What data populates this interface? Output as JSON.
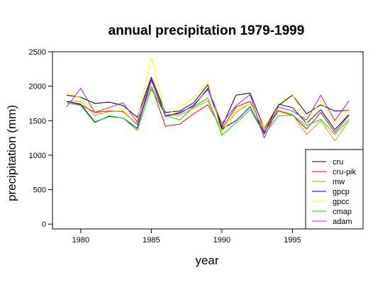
{
  "chart_data": {
    "type": "line",
    "title": "annual precipitation 1979-1999",
    "xlabel": "year",
    "ylabel": "precipitation (mm)",
    "xlim": [
      1978,
      2000
    ],
    "ylim": [
      -70,
      2500
    ],
    "x_ticks": [
      1980,
      1985,
      1990,
      1995
    ],
    "y_ticks": [
      0,
      500,
      1000,
      1500,
      2000,
      2500
    ],
    "legend_position": "bottom-right",
    "grid": false,
    "x": [
      1979,
      1980,
      1981,
      1982,
      1983,
      1984,
      1985,
      1986,
      1987,
      1988,
      1989,
      1990,
      1991,
      1992,
      1993,
      1994,
      1995,
      1996,
      1997,
      1998,
      1999
    ],
    "series": [
      {
        "name": "cru",
        "color": "#000000",
        "values": [
          1870,
          1840,
          1750,
          1770,
          1720,
          1550,
          2130,
          1620,
          1640,
          1760,
          2020,
          1410,
          1870,
          1900,
          1390,
          1720,
          1870,
          1600,
          1730,
          1640,
          1650
        ]
      },
      {
        "name": "cru-pik",
        "color": "#ff0000",
        "values": [
          1780,
          1730,
          1620,
          1640,
          1630,
          1450,
          2000,
          1420,
          1450,
          1600,
          1730,
          1380,
          1700,
          1780,
          1340,
          1640,
          1580,
          1380,
          1620,
          1330,
          1580
        ]
      },
      {
        "name": "mw",
        "color": "#c8a000",
        "values": [
          1780,
          1780,
          1580,
          1630,
          1640,
          1440,
          2000,
          1580,
          1580,
          1680,
          1790,
          1350,
          1620,
          1750,
          1380,
          1650,
          1590,
          1300,
          1500,
          1210,
          1490
        ]
      },
      {
        "name": "gpcp",
        "color": "#000099",
        "values": [
          1780,
          1740,
          1480,
          1560,
          1540,
          1390,
          2090,
          1560,
          1620,
          1710,
          1970,
          1380,
          1500,
          1700,
          1320,
          1740,
          1690,
          1460,
          1660,
          1370,
          1590
        ]
      },
      {
        "name": "gpcc",
        "color": "#ffff00",
        "values": [
          1900,
          1830,
          1640,
          1650,
          1660,
          1500,
          2420,
          1570,
          1700,
          1840,
          2060,
          1320,
          1660,
          1750,
          1400,
          1740,
          1880,
          1460,
          1800,
          1440,
          1690
        ]
      },
      {
        "name": "cmap",
        "color": "#00dd00",
        "values": [
          1760,
          1720,
          1470,
          1570,
          1540,
          1360,
          1960,
          1580,
          1510,
          1700,
          1830,
          1290,
          1470,
          1660,
          1300,
          1570,
          1580,
          1430,
          1520,
          1300,
          1520
        ]
      },
      {
        "name": "adam",
        "color": "#a020f0",
        "values": [
          1700,
          1970,
          1620,
          1690,
          1760,
          1480,
          2100,
          1580,
          1600,
          1730,
          1950,
          1460,
          1720,
          1880,
          1250,
          1700,
          1640,
          1510,
          1870,
          1500,
          1790
        ]
      }
    ]
  }
}
